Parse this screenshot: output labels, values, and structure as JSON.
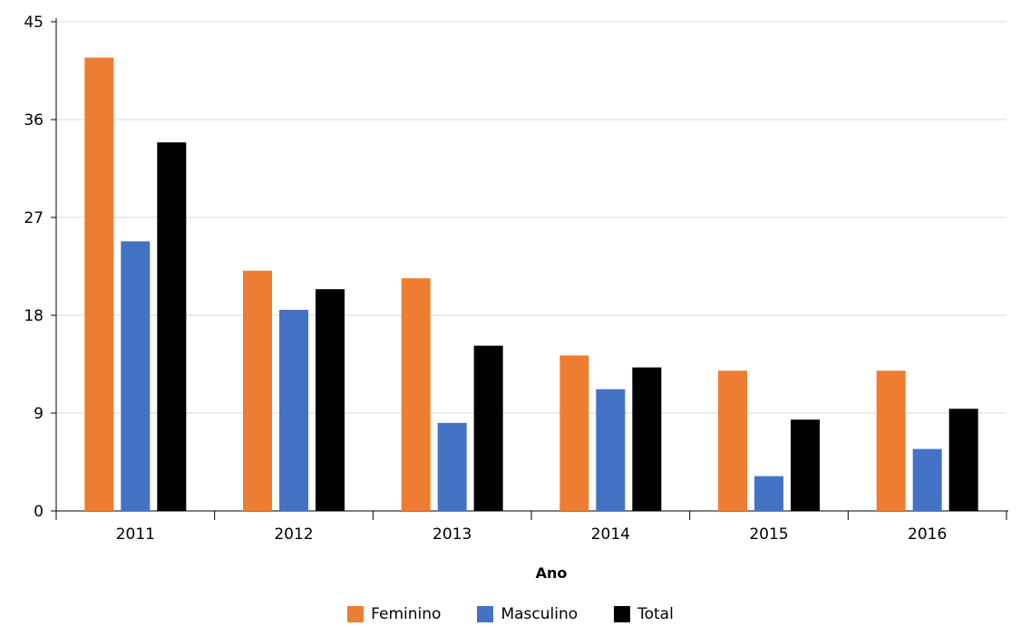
{
  "chart_data": {
    "type": "bar",
    "xlabel": "Ano",
    "ylabel": "",
    "ylim": [
      0,
      45
    ],
    "yticks": [
      "0",
      "9",
      "18",
      "27",
      "36",
      "45"
    ],
    "categories": [
      "2011",
      "2012",
      "2013",
      "2014",
      "2015",
      "2016"
    ],
    "grid": true,
    "legend_position": "bottom",
    "series": [
      {
        "name": "Feminino",
        "color": "#ED7D31",
        "values": [
          41.7,
          22.1,
          21.4,
          14.3,
          12.9,
          12.9
        ]
      },
      {
        "name": "Masculino",
        "color": "#4472C4",
        "values": [
          24.8,
          18.5,
          8.1,
          11.2,
          3.2,
          5.7
        ]
      },
      {
        "name": "Total",
        "color": "#000000",
        "values": [
          33.9,
          20.4,
          15.2,
          13.2,
          8.4,
          9.4
        ]
      }
    ]
  }
}
